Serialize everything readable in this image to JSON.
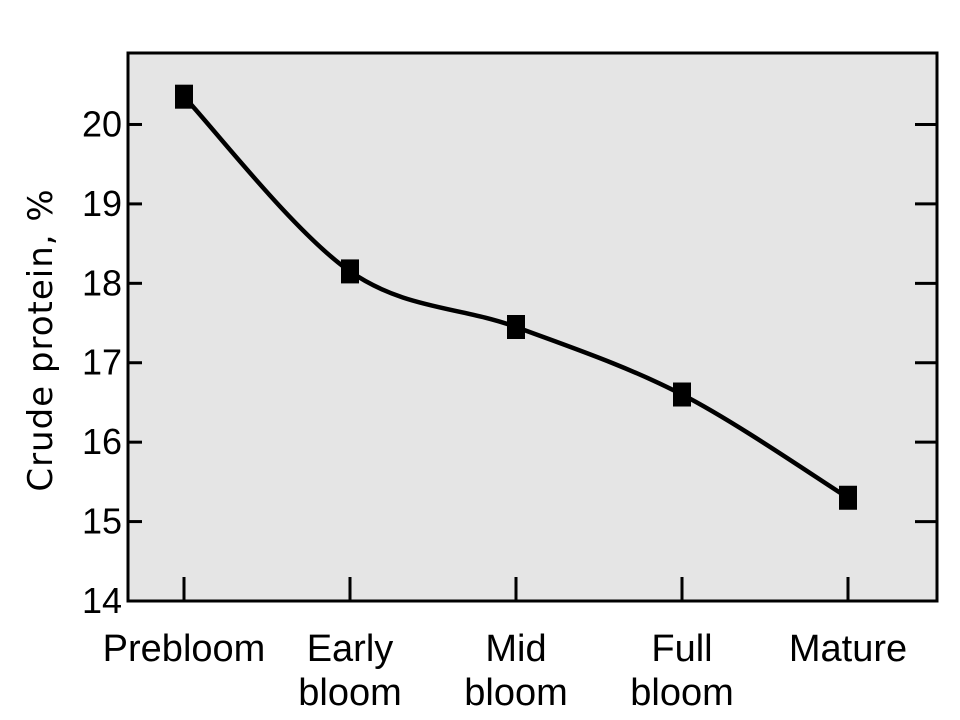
{
  "chart_data": {
    "type": "line",
    "title": "",
    "xlabel": "",
    "ylabel": "Crude protein, %",
    "categories": [
      [
        "Prebloom"
      ],
      [
        "Early",
        "bloom"
      ],
      [
        "Mid",
        "bloom"
      ],
      [
        "Full",
        "bloom"
      ],
      [
        "Mature"
      ]
    ],
    "series": [
      {
        "values": [
          20.35,
          18.15,
          17.45,
          16.6,
          15.3
        ],
        "marker": "square",
        "color": "#000000"
      }
    ],
    "ylim": [
      14,
      20.9
    ],
    "yticks": [
      14,
      15,
      16,
      17,
      18,
      19,
      20
    ],
    "grid": false,
    "legend": "none",
    "plot_background": "#e5e5e5",
    "line_color": "#000000"
  }
}
